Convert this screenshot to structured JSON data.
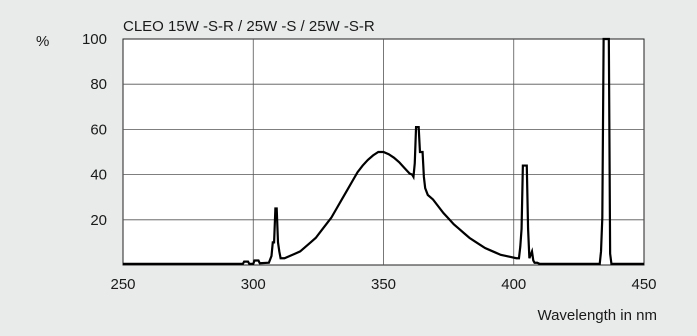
{
  "chart_data": {
    "type": "line",
    "title": "CLEO 15W -S-R / 25W -S / 25W -S-R",
    "ylabel": "%",
    "xlabel": "Wavelength in nm",
    "xlim": [
      250,
      450
    ],
    "ylim": [
      0,
      100
    ],
    "x_ticks": [
      250,
      300,
      350,
      400,
      450
    ],
    "y_ticks": [
      20,
      40,
      60,
      80,
      100
    ],
    "grid": true,
    "series": [
      {
        "color": "#000000",
        "points": [
          [
            250,
            0.5
          ],
          [
            296,
            0.5
          ],
          [
            296.5,
            1.5
          ],
          [
            298,
            1.5
          ],
          [
            298.5,
            0.5
          ],
          [
            300,
            0.5
          ],
          [
            300.5,
            2
          ],
          [
            302,
            2
          ],
          [
            302.5,
            0.8
          ],
          [
            306,
            1
          ],
          [
            307,
            4
          ],
          [
            307.5,
            10
          ],
          [
            308,
            10
          ],
          [
            308.5,
            25
          ],
          [
            309,
            25
          ],
          [
            309.5,
            10
          ],
          [
            310,
            6
          ],
          [
            310.5,
            3
          ],
          [
            312,
            3
          ],
          [
            314,
            4
          ],
          [
            316,
            5
          ],
          [
            318,
            6
          ],
          [
            320,
            8
          ],
          [
            322,
            10
          ],
          [
            324,
            12
          ],
          [
            326,
            15
          ],
          [
            328,
            18
          ],
          [
            330,
            21
          ],
          [
            332,
            25
          ],
          [
            334,
            29
          ],
          [
            336,
            33
          ],
          [
            338,
            37
          ],
          [
            340,
            41
          ],
          [
            342,
            44
          ],
          [
            344,
            46.5
          ],
          [
            346,
            48.5
          ],
          [
            348,
            50
          ],
          [
            350,
            50
          ],
          [
            352,
            49
          ],
          [
            354,
            47.5
          ],
          [
            356,
            45.5
          ],
          [
            358,
            43
          ],
          [
            360,
            40.5
          ],
          [
            361,
            40
          ],
          [
            361.5,
            39
          ],
          [
            362,
            45
          ],
          [
            362.5,
            61
          ],
          [
            363.5,
            61
          ],
          [
            364,
            50
          ],
          [
            365,
            50
          ],
          [
            365.5,
            39
          ],
          [
            366,
            34
          ],
          [
            367,
            31
          ],
          [
            369,
            29
          ],
          [
            371,
            26
          ],
          [
            373,
            23
          ],
          [
            375,
            20.5
          ],
          [
            377,
            18
          ],
          [
            379,
            16
          ],
          [
            381,
            14
          ],
          [
            383,
            12
          ],
          [
            385,
            10.5
          ],
          [
            387,
            9
          ],
          [
            389,
            7.5
          ],
          [
            391,
            6.5
          ],
          [
            393,
            5.5
          ],
          [
            395,
            4.5
          ],
          [
            397,
            4
          ],
          [
            399,
            3.5
          ],
          [
            401,
            3
          ],
          [
            402,
            3
          ],
          [
            402.5,
            8
          ],
          [
            403,
            16
          ],
          [
            403.5,
            44
          ],
          [
            405,
            44
          ],
          [
            405.5,
            16
          ],
          [
            406,
            3
          ],
          [
            407,
            6
          ],
          [
            407.5,
            2
          ],
          [
            408,
            1
          ],
          [
            409,
            1
          ],
          [
            410,
            0.5
          ],
          [
            433,
            0.5
          ],
          [
            433.5,
            6
          ],
          [
            434,
            21
          ],
          [
            434.5,
            100
          ],
          [
            436.5,
            100
          ],
          [
            437,
            5
          ],
          [
            437.5,
            0.5
          ],
          [
            450,
            0.5
          ]
        ]
      }
    ]
  }
}
